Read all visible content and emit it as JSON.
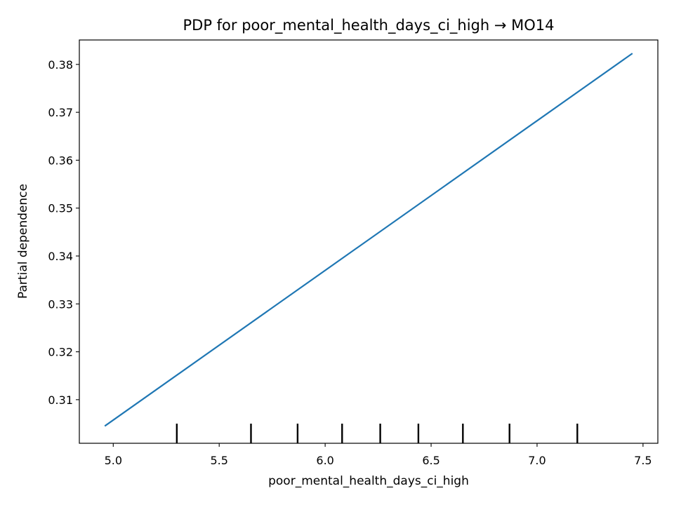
{
  "chart_data": {
    "type": "line",
    "title": "PDP for poor_mental_health_days_ci_high → MO14",
    "xlabel": "poor_mental_health_days_ci_high",
    "ylabel": "Partial dependence",
    "xlim": [
      4.84,
      7.57
    ],
    "ylim": [
      0.3009,
      0.3851
    ],
    "x_ticks": [
      5.0,
      5.5,
      6.0,
      6.5,
      7.0,
      7.5
    ],
    "x_tick_labels": [
      "5.0",
      "5.5",
      "6.0",
      "6.5",
      "7.0",
      "7.5"
    ],
    "y_ticks": [
      0.31,
      0.32,
      0.33,
      0.34,
      0.35,
      0.36,
      0.37,
      0.38
    ],
    "y_tick_labels": [
      "0.31",
      "0.32",
      "0.33",
      "0.34",
      "0.35",
      "0.36",
      "0.37",
      "0.38"
    ],
    "grid": false,
    "series": [
      {
        "color": "#1f77b4",
        "x": [
          4.96,
          7.45
        ],
        "y": [
          0.3045,
          0.3823
        ]
      }
    ],
    "deciles": [
      5.3,
      5.65,
      5.87,
      6.08,
      6.26,
      6.44,
      6.65,
      6.87,
      7.19
    ],
    "decile_color": "#000000"
  }
}
